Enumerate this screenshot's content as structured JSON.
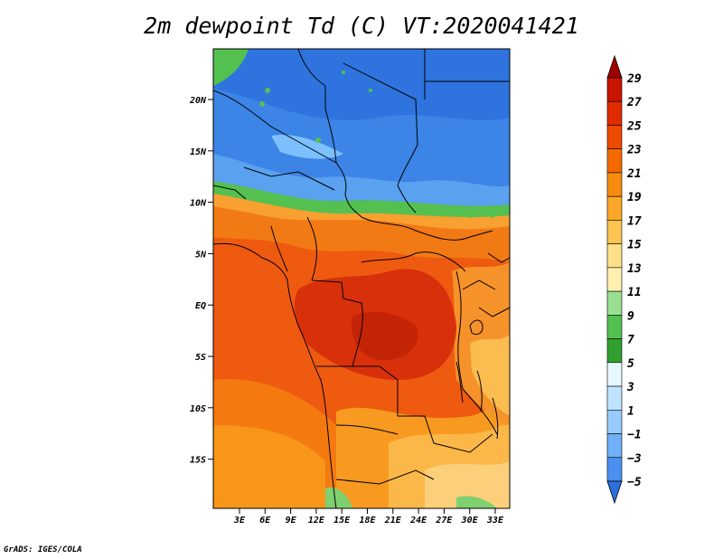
{
  "title": "2m dewpoint Td (C) VT:2020041421",
  "credit": "GrADS: IGES/COLA",
  "map": {
    "lat_labels": [
      "20N",
      "15N",
      "10N",
      "5N",
      "EQ",
      "5S",
      "10S",
      "15S"
    ],
    "lon_labels": [
      "3E",
      "6E",
      "9E",
      "12E",
      "15E",
      "18E",
      "21E",
      "24E",
      "27E",
      "30E",
      "33E"
    ]
  },
  "colorbar": {
    "labels": [
      "29",
      "27",
      "25",
      "23",
      "21",
      "19",
      "17",
      "15",
      "13",
      "11",
      "9",
      "7",
      "5",
      "3",
      "1",
      "−1",
      "−3",
      "−5"
    ],
    "colors": [
      "#a00000",
      "#c81400",
      "#e02c00",
      "#ee4a00",
      "#f46a00",
      "#f88c10",
      "#fba828",
      "#fcc450",
      "#fde088",
      "#fff0b0",
      "#98e090",
      "#54c050",
      "#30a030",
      "#e8f8ff",
      "#c0e4ff",
      "#98ccff",
      "#70b0f8",
      "#4a90f0",
      "#2c70e0"
    ]
  }
}
